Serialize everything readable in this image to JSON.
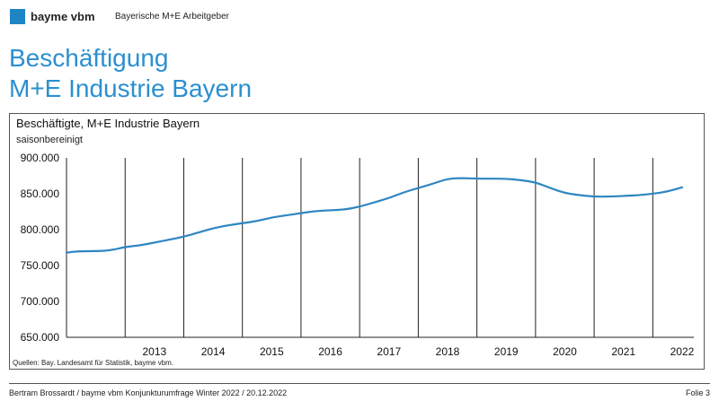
{
  "header": {
    "brand": "bayme vbm",
    "organization": "Bayerische M+E Arbeitgeber"
  },
  "slide": {
    "title_line1": "Beschäftigung",
    "title_line2": "M+E Industrie Bayern"
  },
  "footer": {
    "left": "Bertram Brossardt  /  bayme vbm Konjunkturumfrage Winter 2022 / 20.12.2022",
    "right": "Folie 3"
  },
  "colors": {
    "brand": "#1f84c4",
    "title": "#2b8fd0",
    "line": "#2e86c1"
  },
  "chart_data": {
    "type": "line",
    "title": "Beschäftigte, M+E Industrie Bayern",
    "subtitle": "saisonbereinigt",
    "source": "Quellen:  Bay. Landesamt für Statistik, bayme vbm.",
    "ylim": [
      650000,
      900000
    ],
    "yticks": [
      900000,
      850000,
      800000,
      750000,
      700000,
      650000
    ],
    "ytick_labels": [
      "900.000",
      "850.000",
      "800.000",
      "750.000",
      "700.000",
      "650.000"
    ],
    "x_range": [
      2012.0,
      2022.7
    ],
    "x_categories": [
      "2013",
      "2014",
      "2015",
      "2016",
      "2017",
      "2018",
      "2019",
      "2020",
      "2021",
      "2022"
    ],
    "grid": "vertical lines at year boundaries",
    "series": [
      {
        "x": [
          2012.0,
          2012.2,
          2012.5,
          2012.75,
          2013.0,
          2013.25,
          2013.5,
          2013.75,
          2014.0,
          2014.25,
          2014.5,
          2014.75,
          2015.0,
          2015.25,
          2015.5,
          2015.75,
          2016.0,
          2016.25,
          2016.5,
          2016.75,
          2017.0,
          2017.25,
          2017.5,
          2017.75,
          2018.0,
          2018.25,
          2018.5,
          2018.75,
          2019.0,
          2019.25,
          2019.5,
          2019.75,
          2020.0,
          2020.25,
          2020.5,
          2020.75,
          2021.0,
          2021.25,
          2021.5,
          2021.75,
          2022.0,
          2022.25,
          2022.5
        ],
        "values": [
          768000,
          770000,
          770000,
          771000,
          776000,
          778000,
          782000,
          786000,
          790000,
          796000,
          802000,
          806000,
          809000,
          812000,
          817000,
          820000,
          823000,
          826000,
          827000,
          828000,
          832000,
          838000,
          844000,
          852000,
          858000,
          864000,
          871000,
          872000,
          871000,
          871000,
          871000,
          869000,
          866000,
          858000,
          851000,
          848000,
          846000,
          846000,
          847000,
          848000,
          850000,
          853000,
          859000
        ]
      }
    ]
  }
}
